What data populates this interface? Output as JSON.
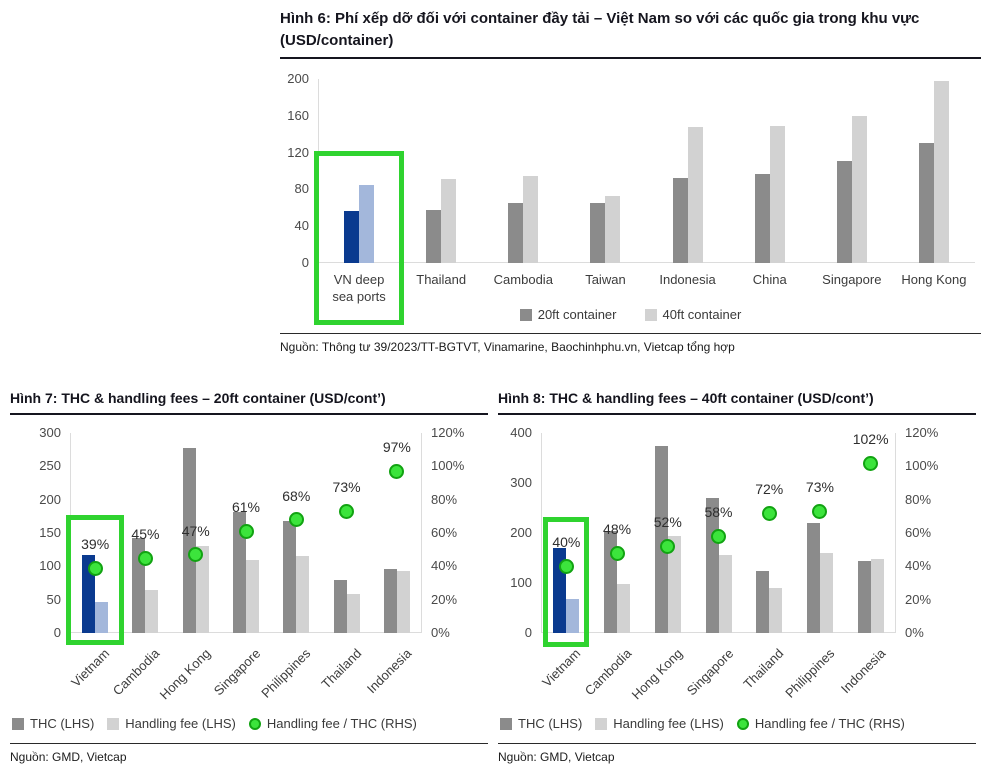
{
  "chart_data": [
    {
      "id": "fig6",
      "type": "bar",
      "title": "Hình 6: Phí xếp dỡ đối với container đầy tải – Việt Nam so với các quốc gia trong khu vực (USD/container)",
      "title_lines": [
        "Hình 6: Phí xếp dỡ đối với container đầy tải – Việt Nam so với các quốc gia trong khu vực",
        "(USD/container)"
      ],
      "categories": [
        "VN deep\nsea ports",
        "Thailand",
        "Cambodia",
        "Taiwan",
        "Indonesia",
        "China",
        "Singapore",
        "Hong Kong"
      ],
      "series": [
        {
          "name": "20ft container",
          "values": [
            57,
            58,
            65,
            65,
            92,
            97,
            111,
            130
          ],
          "color": "#8b8b8b",
          "highlight_color": "#0a3a8f"
        },
        {
          "name": "40ft container",
          "values": [
            85,
            91,
            95,
            73,
            148,
            149,
            160,
            198
          ],
          "color": "#d2d2d2",
          "highlight_color": "#a3b7db"
        }
      ],
      "ylim": [
        0,
        200
      ],
      "yticks": [
        0,
        40,
        80,
        120,
        160,
        200
      ],
      "grid": false,
      "legend_position": "bottom",
      "highlight_index": 0,
      "highlight_color": "#2fd32f",
      "source": "Nguồn: Thông tư 39/2023/TT-BGTVT, Vinamarine, Baochinhphu.vn, Vietcap tổng hợp"
    },
    {
      "id": "fig7",
      "type": "bar+scatter",
      "title": "Hình 7: THC & handling fees – 20ft container (USD/cont’)",
      "title_lines": [
        "Hình 7: THC & handling fees – 20ft container (USD/cont’)"
      ],
      "categories": [
        "Vietnam",
        "Cambodia",
        "Hong Kong",
        "Singapore",
        "Philippines",
        "Thailand",
        "Indonesia"
      ],
      "series": [
        {
          "name": "THC (LHS)",
          "values": [
            117,
            143,
            278,
            181,
            168,
            80,
            96
          ],
          "color": "#8b8b8b",
          "highlight_color": "#0a3a8f"
        },
        {
          "name": "Handling fee (LHS)",
          "values": [
            46,
            64,
            130,
            110,
            115,
            58,
            93
          ],
          "color": "#d2d2d2",
          "highlight_color": "#a3b7db"
        },
        {
          "name": "Handling fee / THC (RHS)",
          "scatter": true,
          "values": [
            39,
            45,
            47,
            61,
            68,
            73,
            97
          ],
          "labels": [
            "39%",
            "45%",
            "47%",
            "61%",
            "68%",
            "73%",
            "97%"
          ],
          "color": "#3ce43c",
          "border": "#12a312"
        }
      ],
      "ylim_left": [
        0,
        300
      ],
      "yticks_left": [
        0,
        50,
        100,
        150,
        200,
        250,
        300
      ],
      "ylim_right": [
        0,
        120
      ],
      "yticks_right": [
        "0%",
        "20%",
        "40%",
        "60%",
        "80%",
        "100%",
        "120%"
      ],
      "grid": false,
      "legend_position": "bottom",
      "highlight_index": 0,
      "highlight_color": "#2fd32f",
      "source": "Nguồn: GMD, Vietcap"
    },
    {
      "id": "fig8",
      "type": "bar+scatter",
      "title": "Hình 8: THC & handling fees – 40ft container (USD/cont’)",
      "title_lines": [
        "Hình 8: THC & handling fees – 40ft container (USD/cont’)"
      ],
      "categories": [
        "Vietnam",
        "Cambodia",
        "Hong Kong",
        "Singapore",
        "Thailand",
        "Philippines",
        "Indonesia"
      ],
      "series": [
        {
          "name": "THC (LHS)",
          "values": [
            170,
            205,
            375,
            270,
            125,
            220,
            145
          ],
          "color": "#8b8b8b",
          "highlight_color": "#0a3a8f"
        },
        {
          "name": "Handling fee (LHS)",
          "values": [
            68,
            98,
            195,
            157,
            90,
            160,
            148
          ],
          "color": "#d2d2d2",
          "highlight_color": "#a3b7db"
        },
        {
          "name": "Handling fee / THC (RHS)",
          "scatter": true,
          "values": [
            40,
            48,
            52,
            58,
            72,
            73,
            102
          ],
          "labels": [
            "40%",
            "48%",
            "52%",
            "58%",
            "72%",
            "73%",
            "102%"
          ],
          "color": "#3ce43c",
          "border": "#12a312"
        }
      ],
      "ylim_left": [
        0,
        400
      ],
      "yticks_left": [
        0,
        100,
        200,
        300,
        400
      ],
      "ylim_right": [
        0,
        120
      ],
      "yticks_right": [
        "0%",
        "20%",
        "40%",
        "60%",
        "80%",
        "100%",
        "120%"
      ],
      "grid": false,
      "legend_position": "bottom",
      "highlight_index": 0,
      "highlight_color": "#2fd32f",
      "source": "Nguồn: GMD, Vietcap"
    }
  ]
}
